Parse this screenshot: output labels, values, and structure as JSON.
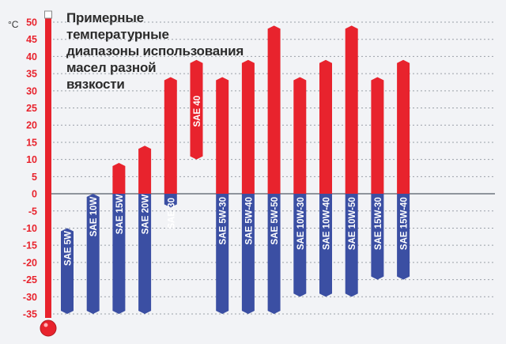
{
  "chart_data": {
    "type": "bar",
    "title_lines": [
      "Примерные температурные",
      "диапазоны использования",
      "масел разной",
      "вязкости"
    ],
    "unit": "°C",
    "ylim": [
      -35,
      50
    ],
    "yticks": [
      50,
      45,
      40,
      35,
      30,
      25,
      20,
      15,
      10,
      5,
      0,
      -5,
      -10,
      -15,
      -20,
      -25,
      -30,
      -35
    ],
    "grid": true,
    "colors": {
      "hot": "#e8232d",
      "cold": "#3b4fa3",
      "zero_line": "#8f949c",
      "grid": "#9aa0a8",
      "tick_text": "#e8232d"
    },
    "categories": [
      "SAE 5W",
      "SAE 10W",
      "SAE 15W",
      "SAE 20W",
      "SAE 30",
      "SAE 40",
      "SAE 5W-30",
      "SAE 5W-40",
      "SAE 5W-50",
      "SAE 10W-30",
      "SAE 10W-40",
      "SAE 10W-50",
      "SAE 15W-30",
      "SAE 15W-40"
    ],
    "ranges": [
      {
        "low": -35,
        "high": -10
      },
      {
        "low": -35,
        "high": 0
      },
      {
        "low": -35,
        "high": 9
      },
      {
        "low": -35,
        "high": 14
      },
      {
        "low": -4,
        "high": 34
      },
      {
        "low": 10,
        "high": 39
      },
      {
        "low": -35,
        "high": 34
      },
      {
        "low": -35,
        "high": 39
      },
      {
        "low": -35,
        "high": 49
      },
      {
        "low": -30,
        "high": 34
      },
      {
        "low": -30,
        "high": 39
      },
      {
        "low": -30,
        "high": 49
      },
      {
        "low": -25,
        "high": 34
      },
      {
        "low": -25,
        "high": 39
      }
    ]
  }
}
